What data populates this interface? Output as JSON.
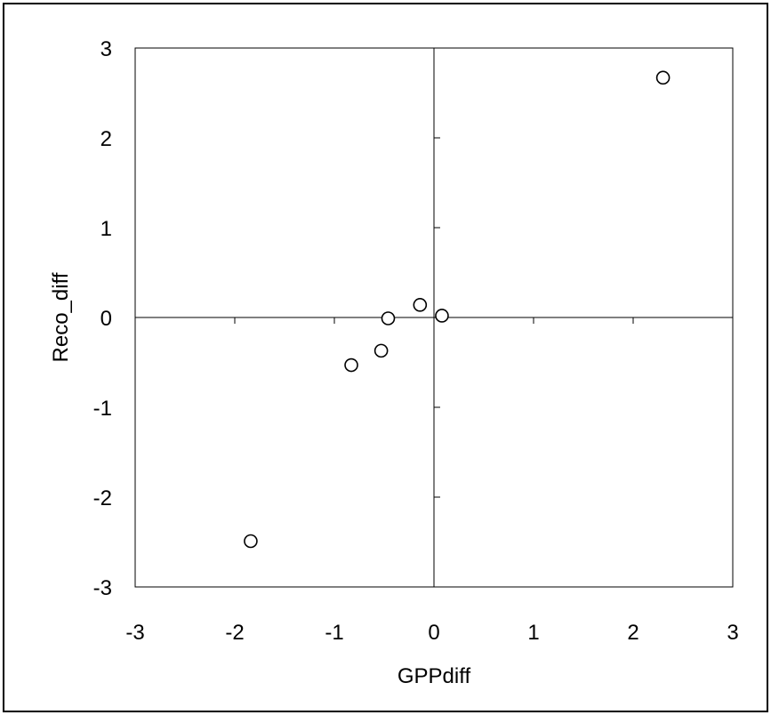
{
  "chart_data": {
    "type": "scatter",
    "title": "",
    "xlabel": "GPPdiff",
    "ylabel": "Reco_diff",
    "xlim": [
      -3,
      3
    ],
    "ylim": [
      -3,
      3
    ],
    "x_ticks": [
      -3,
      -2,
      -1,
      0,
      1,
      2,
      3
    ],
    "y_ticks": [
      -3,
      -2,
      -1,
      0,
      1,
      2,
      3
    ],
    "x_tick_labels": [
      "-3",
      "-2",
      "-1",
      "0",
      "1",
      "2",
      "3"
    ],
    "y_tick_labels": [
      "-3",
      "-2",
      "-1",
      "0",
      "1",
      "2",
      "3"
    ],
    "grid": false,
    "legend": "none",
    "marker": "open-circle",
    "marker_color": "#000000",
    "points": [
      {
        "x": 2.3,
        "y": 2.67
      },
      {
        "x": -0.14,
        "y": 0.14
      },
      {
        "x": 0.08,
        "y": 0.02
      },
      {
        "x": -0.46,
        "y": -0.01
      },
      {
        "x": -0.53,
        "y": -0.37
      },
      {
        "x": -0.83,
        "y": -0.53
      },
      {
        "x": -1.84,
        "y": -2.49
      }
    ]
  }
}
